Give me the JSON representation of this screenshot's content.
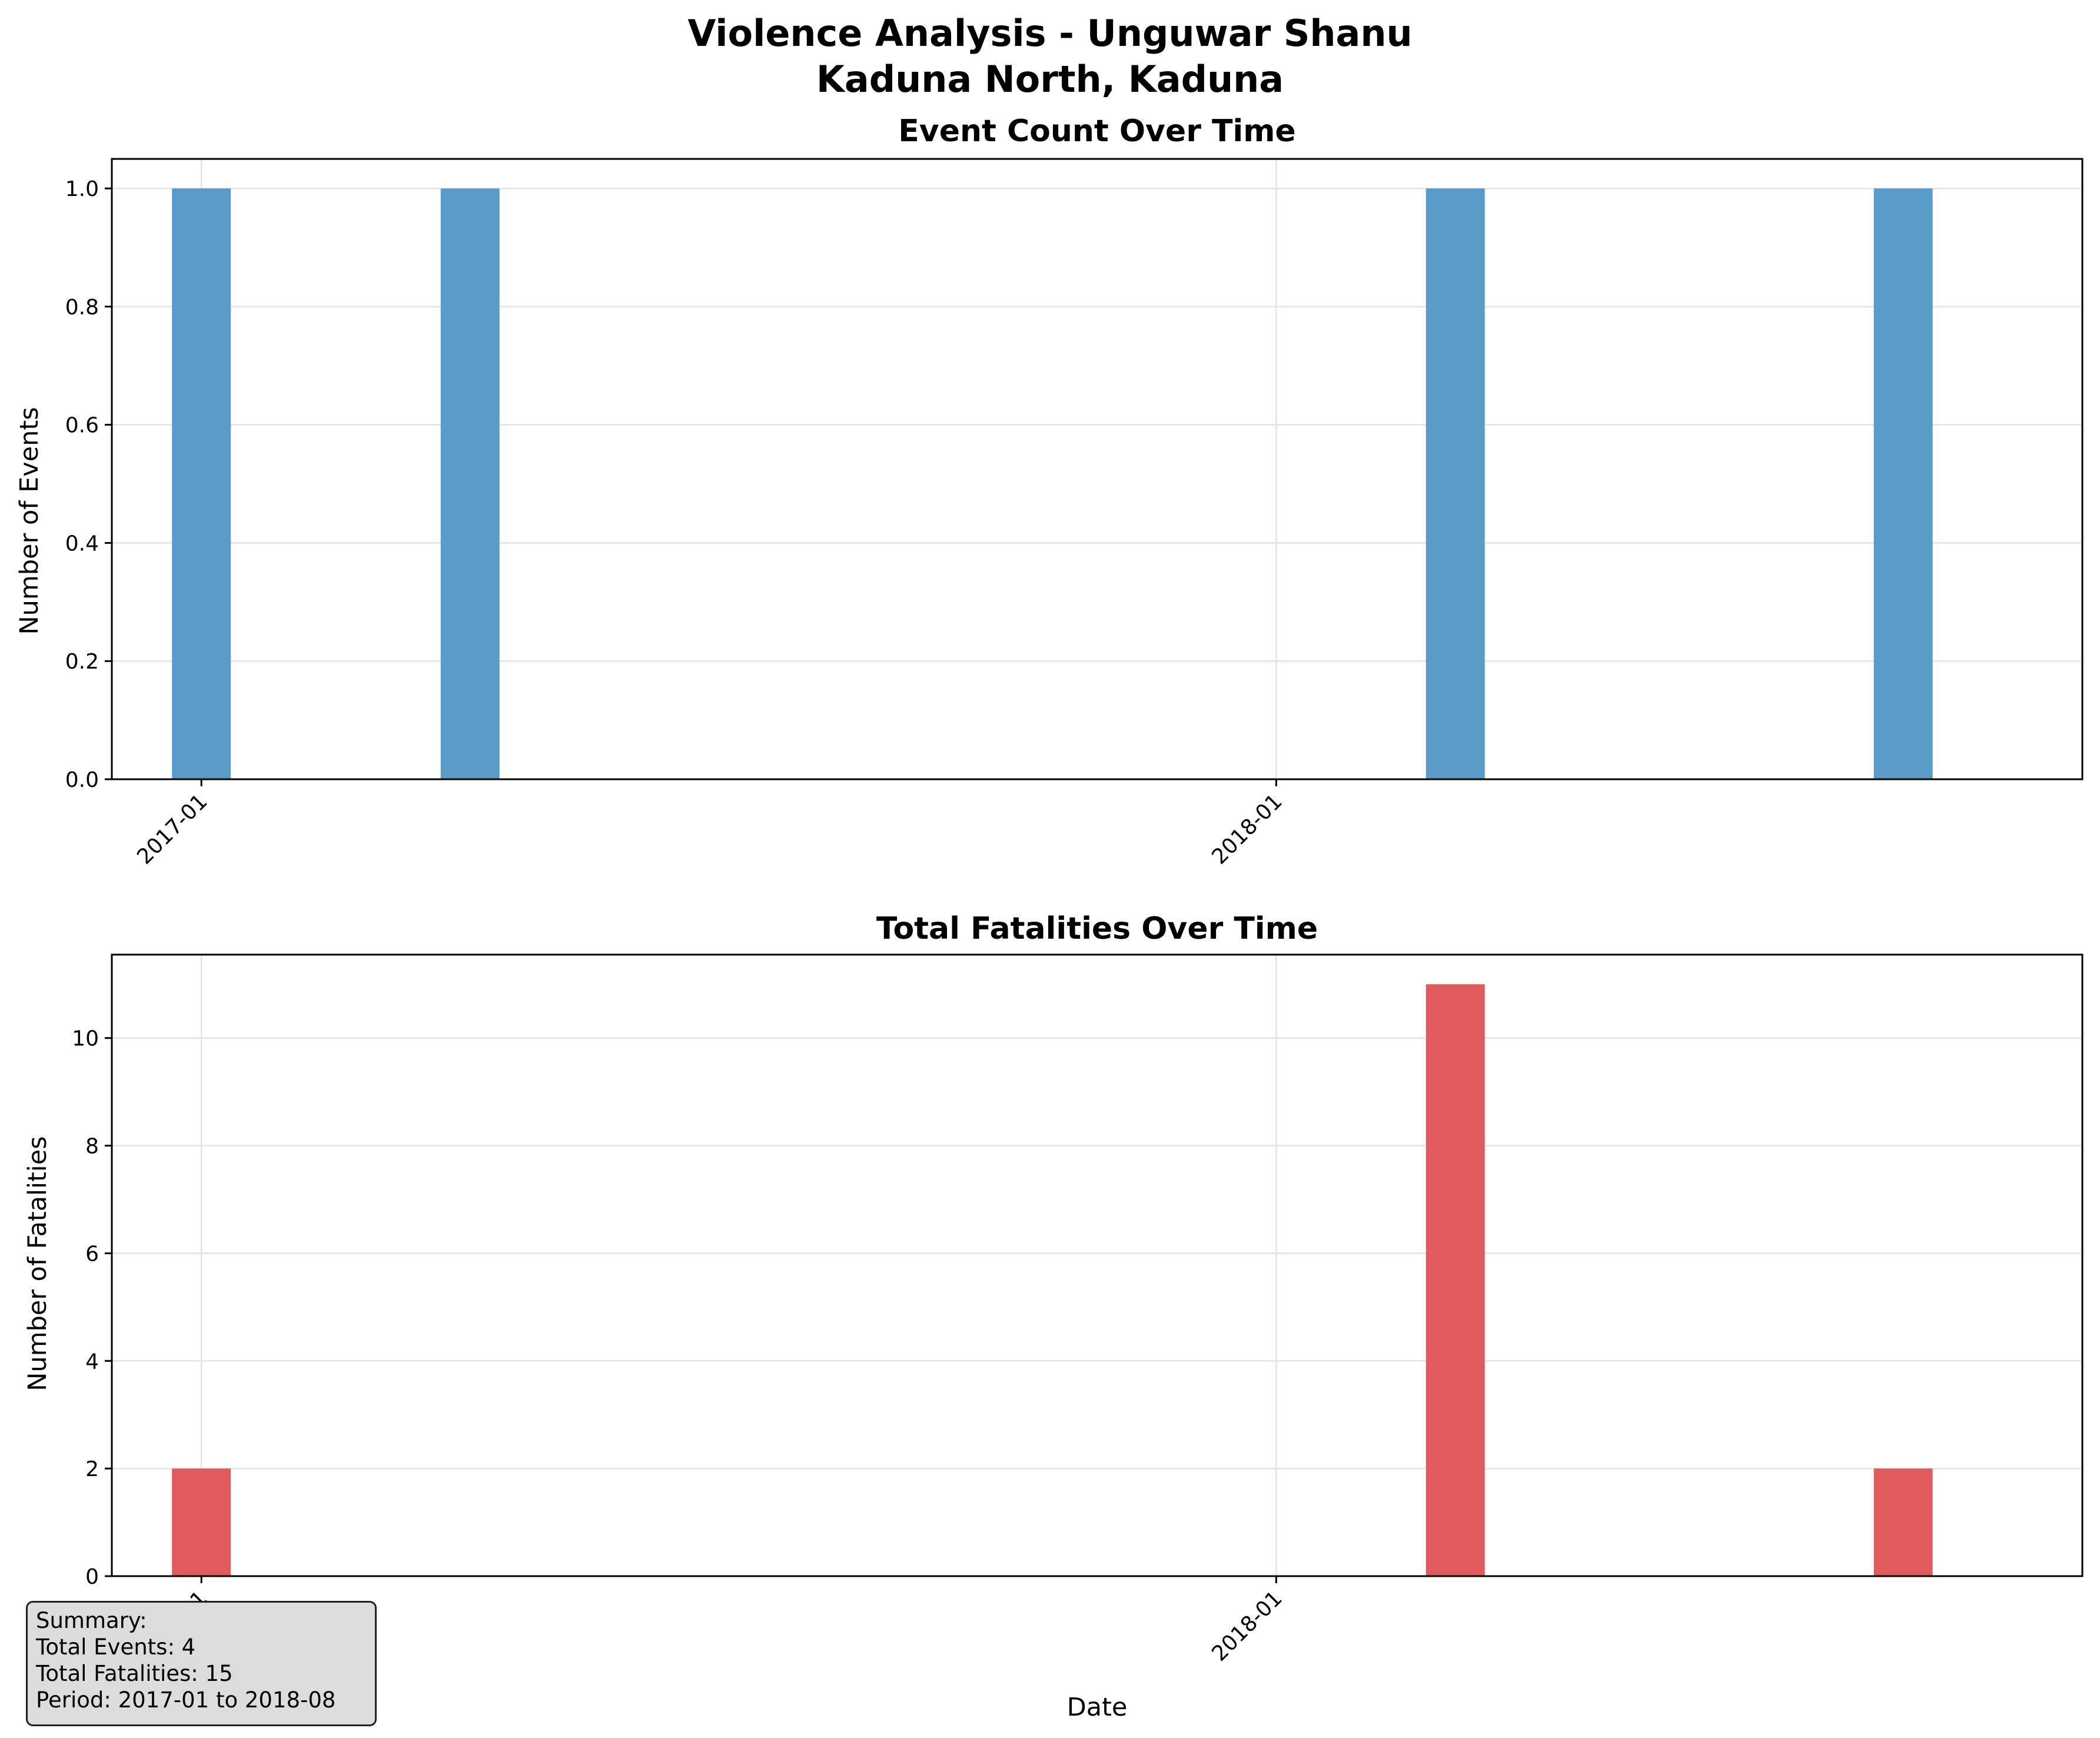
{
  "figure": {
    "title_line1": "Violence Analysis - Unguwar Shanu",
    "title_line2": "Kaduna North, Kaduna"
  },
  "colors": {
    "events_bar": "#5b9bc9",
    "fatalities_bar": "#e05b5e"
  },
  "chart_data": [
    {
      "type": "bar",
      "title": "Event Count Over Time",
      "xlabel": "",
      "ylabel": "Number of Events",
      "x_tick_labels": [
        "2017-01",
        "2018-01"
      ],
      "x_tick_dates": [
        "2017-01",
        "2018-01"
      ],
      "xlim": [
        "2016-12",
        "2018-10"
      ],
      "ylim": [
        0,
        1.05
      ],
      "y_ticks": [
        "0.0",
        "0.2",
        "0.4",
        "0.6",
        "0.8",
        "1.0"
      ],
      "grid": true,
      "bars": [
        {
          "date": "2017-01",
          "value": 1
        },
        {
          "date": "2017-04",
          "value": 1
        },
        {
          "date": "2018-03",
          "value": 1
        },
        {
          "date": "2018-08",
          "value": 1
        }
      ]
    },
    {
      "type": "bar",
      "title": "Total Fatalities Over Time",
      "xlabel": "Date",
      "ylabel": "Number of Fatalities",
      "x_tick_labels": [
        "2017-01",
        "2018-01"
      ],
      "x_tick_dates": [
        "2017-01",
        "2018-01"
      ],
      "xlim": [
        "2016-12",
        "2018-10"
      ],
      "ylim": [
        0,
        11.55
      ],
      "y_ticks": [
        "0",
        "2",
        "4",
        "6",
        "8",
        "10"
      ],
      "grid": true,
      "bars": [
        {
          "date": "2017-01",
          "value": 2
        },
        {
          "date": "2017-04",
          "value": 0
        },
        {
          "date": "2018-03",
          "value": 11
        },
        {
          "date": "2018-08",
          "value": 2
        }
      ]
    }
  ],
  "summary": {
    "heading": "Summary:",
    "total_events": "Total Events: 4",
    "total_fatalities": "Total Fatalities: 15",
    "period": "Period: 2017-01 to 2018-08"
  }
}
